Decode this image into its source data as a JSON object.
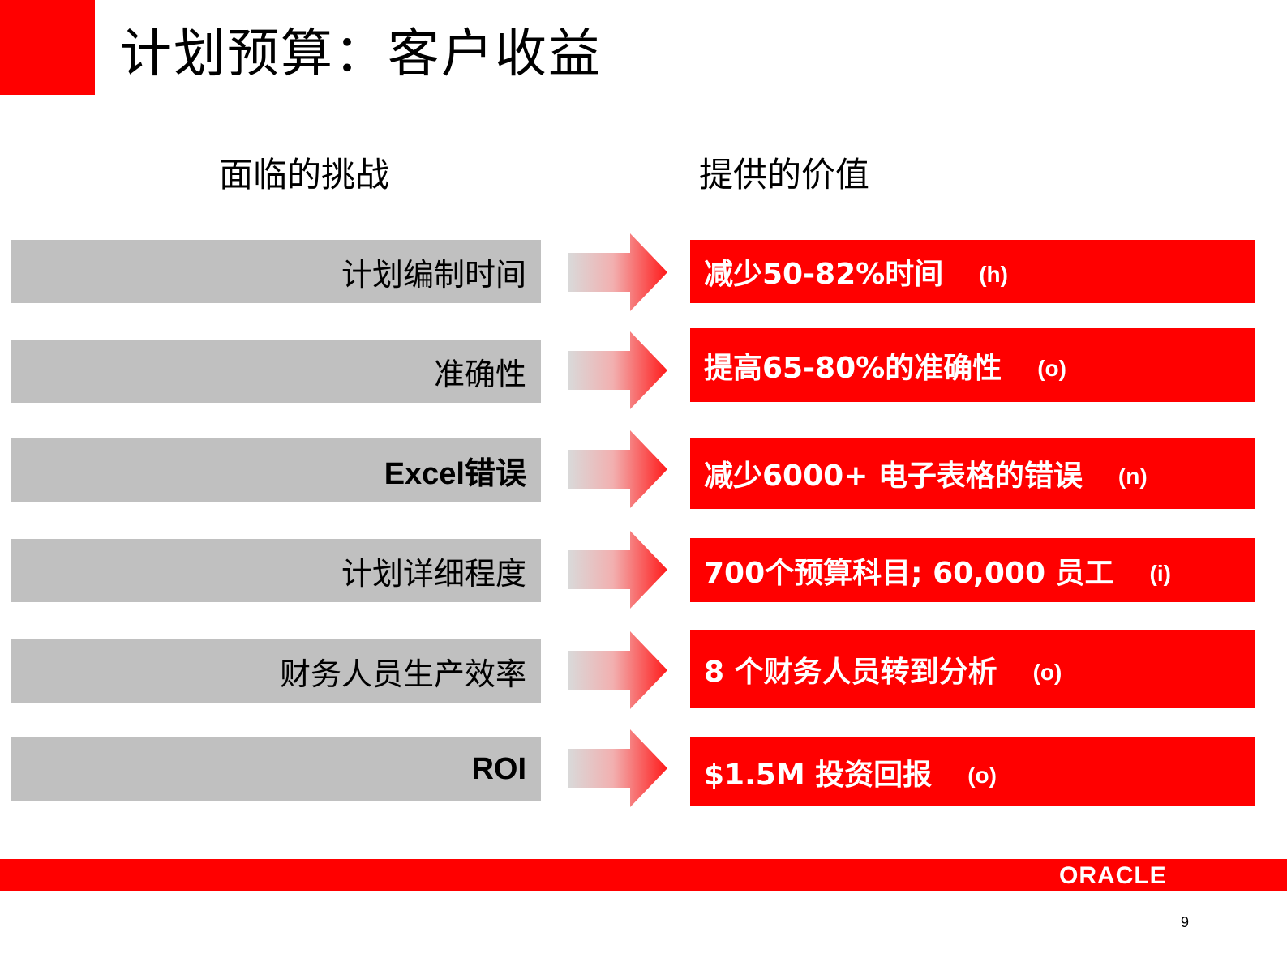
{
  "slide": {
    "title": "计划预算：客户收益",
    "page_number": "9"
  },
  "headers": {
    "challenges": "面临的挑战",
    "value": "提供的价值"
  },
  "colors": {
    "accent_red": "#ff0000",
    "challenge_grey": "#c0c0c0"
  },
  "rows": [
    {
      "challenge": "计划编制时间",
      "value": "减少50-82%时间",
      "code": "(h)"
    },
    {
      "challenge": "准确性",
      "value": "提高65-80%的准确性",
      "code": "(o)"
    },
    {
      "challenge": "Excel错误",
      "value": "减少6000+ 电子表格的错误",
      "code": "(n)"
    },
    {
      "challenge": "计划详细程度",
      "value": "700个预算科目; 60,000 员工",
      "code": "(i)"
    },
    {
      "challenge": "财务人员生产效率",
      "value": "8 个财务人员转到分析",
      "code": "(o)"
    },
    {
      "challenge": "ROI",
      "value": "$1.5M 投资回报",
      "code": "(o)"
    }
  ],
  "footer": {
    "logo": "ORACLE"
  }
}
